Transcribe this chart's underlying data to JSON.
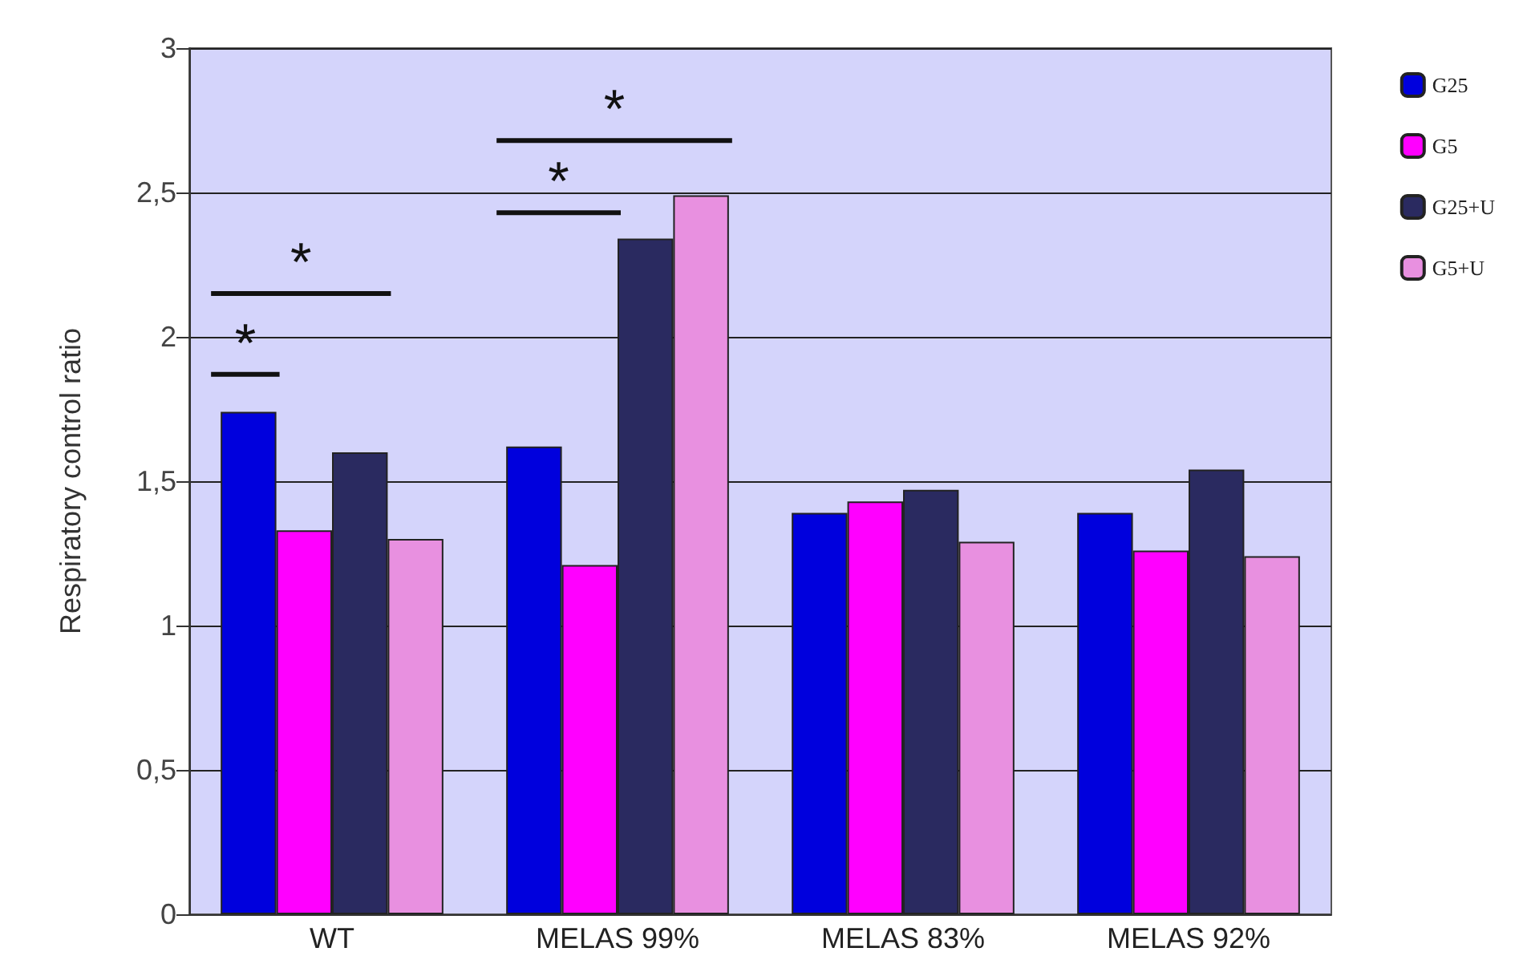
{
  "chart_data": {
    "type": "bar",
    "ylabel": "Respiratory control ratio",
    "categories": [
      "WT",
      "MELAS 99%",
      "MELAS 83%",
      "MELAS 92%"
    ],
    "series": [
      {
        "name": "G25",
        "color": "#0000dd",
        "values": [
          1.74,
          1.62,
          1.39,
          1.39
        ]
      },
      {
        "name": "G5",
        "color": "#ff00ff",
        "values": [
          1.33,
          1.21,
          1.43,
          1.26
        ]
      },
      {
        "name": "G25+U",
        "color": "#2a2a60",
        "values": [
          1.6,
          2.34,
          1.47,
          1.54
        ]
      },
      {
        "name": "G5+U",
        "color": "#e890e0",
        "values": [
          1.3,
          2.49,
          1.29,
          1.24
        ]
      }
    ],
    "ylim": [
      0,
      3
    ],
    "yticks": [
      0,
      {
        "value": 0.5,
        "label": "0,5"
      },
      1,
      {
        "value": 1.5,
        "label": "1,5"
      },
      2,
      {
        "value": 2.5,
        "label": "2,5"
      },
      3
    ],
    "grid": "y",
    "legend": "right",
    "annotations": [
      "*",
      "*",
      "*",
      "*"
    ]
  }
}
